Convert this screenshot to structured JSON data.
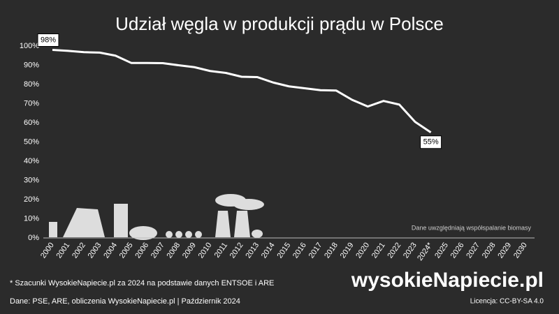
{
  "chart_data": {
    "type": "line",
    "title": "Udział węgla w produkcji prądu w Polsce",
    "categories": [
      "2000",
      "2001",
      "2002",
      "2003",
      "2004",
      "2005",
      "2006",
      "2007",
      "2008",
      "2009",
      "2010",
      "2011",
      "2012",
      "2013",
      "2014",
      "2015",
      "2016",
      "2017",
      "2018",
      "2019",
      "2020",
      "2021",
      "2022",
      "2023",
      "2024*",
      "2025",
      "2026",
      "2027",
      "2028",
      "2029",
      "2030"
    ],
    "series": [
      {
        "name": "Udział węgla",
        "color": "#ffffff",
        "values": [
          98,
          97.5,
          96.8,
          96.6,
          95,
          91.2,
          91.2,
          91.1,
          90,
          89,
          87,
          86,
          84,
          83.8,
          81,
          79,
          78,
          77,
          76.8,
          72,
          68.5,
          71.4,
          69.5,
          60.5,
          55,
          null,
          null,
          null,
          null,
          null,
          null
        ],
        "value_labels": [
          "98%",
          null,
          null,
          null,
          null,
          null,
          null,
          null,
          null,
          null,
          null,
          null,
          null,
          null,
          null,
          null,
          null,
          null,
          null,
          null,
          null,
          null,
          null,
          null,
          "55%",
          null,
          null,
          null,
          null,
          null,
          null
        ]
      }
    ],
    "ylim": [
      0,
      100
    ],
    "yticks": [
      {
        "value": 0,
        "label": "0%"
      },
      {
        "value": 10,
        "label": "10%"
      },
      {
        "value": 20,
        "label": "20%"
      },
      {
        "value": 30,
        "label": "30%"
      },
      {
        "value": 40,
        "label": "40%"
      },
      {
        "value": 50,
        "label": "50%"
      },
      {
        "value": 60,
        "label": "60%"
      },
      {
        "value": 70,
        "label": "70%"
      },
      {
        "value": 80,
        "label": "80%"
      },
      {
        "value": 90,
        "label": "90%"
      },
      {
        "value": 100,
        "label": "100%"
      }
    ],
    "grid": false,
    "note": "Dane uwzględniają współspalanie biomasy",
    "footnote": "* Szacunki WysokieNapiecie.pl za 2024 na podstawie danych ENTSOE i ARE",
    "source": "Dane: PSE, ARE, obliczenia WysokieNapiecie.pl  |  Październik 2024",
    "logo": "wysokieNapiecie.pl",
    "license": "Licencja: CC-BY-SA 4.0"
  }
}
